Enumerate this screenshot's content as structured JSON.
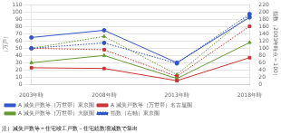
{
  "chart_data": {
    "type": "line",
    "categories": [
      "2003年時",
      "2008年時",
      "2013年時",
      "2018年時"
    ],
    "ylabel": "（万戸）",
    "y2label": "指数（2003年時点＝100）",
    "annotations": [
      "注）滅失戸数等＝住宅竣工戸数－住宅総数増減数で算出"
    ],
    "ylim": [
      0,
      110
    ],
    "yticks": [
      0,
      10,
      20,
      30,
      40,
      50,
      60,
      70,
      80,
      90,
      100,
      110
    ],
    "y2lim": [
      0,
      220
    ],
    "y2ticks": [
      0,
      20,
      40,
      60,
      80,
      100,
      120,
      140,
      160,
      180,
      200,
      220
    ],
    "grid": true,
    "legend": "bottom",
    "series": [
      {
        "name": "A 滅失戸数等（万世帯）東京圏",
        "color": "#3355cc",
        "marker": "circle",
        "line_style": "solid",
        "values": [
          65,
          75,
          30,
          93
        ]
      },
      {
        "name": "A 滅失戸数等（万世帯）名古屋圏",
        "color": "#cc3333",
        "marker": "square",
        "line_style": "solid",
        "values": [
          23,
          22,
          5,
          37
        ]
      },
      {
        "name": "A 滅失戸数等（万世帯）大阪圏",
        "color": "#669933",
        "marker": "triangle",
        "line_style": "solid",
        "values": [
          30,
          40,
          8,
          58
        ]
      },
      {
        "name": "指数（右軸）東京圏",
        "color": "#3355cc",
        "marker": "circle",
        "line_style": "dotted",
        "axis": "y2",
        "values": [
          100,
          115,
          58,
          195
        ]
      },
      {
        "color": "#cc3333",
        "marker": "square",
        "line_style": "dotted",
        "axis": "y2",
        "values": [
          100,
          96,
          22,
          161
        ]
      },
      {
        "color": "#669933",
        "marker": "triangle",
        "line_style": "dotted",
        "axis": "y2",
        "values": [
          100,
          133,
          27,
          193
        ]
      }
    ]
  }
}
